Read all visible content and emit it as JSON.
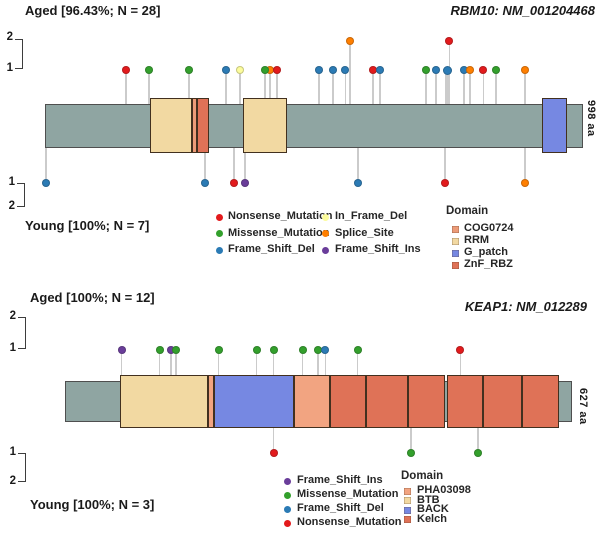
{
  "figure": {
    "background": "#FFFFFF"
  },
  "backbone_color": "#8FA5A2",
  "stem_color": "#CBCBCB",
  "mutation_colors": {
    "Nonsense_Mutation": "#E31A1C",
    "Missense_Mutation": "#33A02C",
    "Frame_Shift_Del": "#2B7BB5",
    "In_Frame_Del": "#FCFC9C",
    "Splice_Site": "#FF7F00",
    "Frame_Shift_Ins": "#6A3D9A"
  },
  "domain_colors": {
    "COG0724": "#EC9B78",
    "RRM": "#F2D9A2",
    "G_patch": "#7688E2",
    "ZnF_RBZ": "#DF7257",
    "PHA03098": "#F2A481",
    "BTB": "#F2D9A2",
    "BACK": "#7688E2",
    "Kelch": "#DF7257"
  },
  "chart_data": [
    {
      "type": "lollipop",
      "gene_title": "RBM10: NM_001204468",
      "aged_label": "Aged [96.43%; N = 28]",
      "young_label": "Young [100%; N = 7]",
      "length_label": "998 aa",
      "length_aa": 998,
      "axis_ticks_top": [
        "2",
        "1"
      ],
      "axis_ticks_bottom": [
        "1",
        "2"
      ],
      "domain_legend_title": "Domain",
      "domains": [
        {
          "name": "RRM",
          "start": 195,
          "end": 273
        },
        {
          "name": "COG0724",
          "start": 273,
          "end": 282
        },
        {
          "name": "ZnF_RBZ",
          "start": 282,
          "end": 304
        },
        {
          "name": "RRM",
          "start": 367,
          "end": 449
        },
        {
          "name": "G_patch",
          "start": 922,
          "end": 968
        }
      ],
      "aged_mutations": [
        {
          "aa": 150,
          "count": 1,
          "type": "Nonsense_Mutation"
        },
        {
          "aa": 193,
          "count": 1,
          "type": "Missense_Mutation"
        },
        {
          "aa": 267,
          "count": 1,
          "type": "Missense_Mutation"
        },
        {
          "aa": 336,
          "count": 1,
          "type": "Frame_Shift_Del"
        },
        {
          "aa": 362,
          "count": 1,
          "type": "In_Frame_Del"
        },
        {
          "aa": 417,
          "count": 1,
          "type": "Splice_Site"
        },
        {
          "aa": 408,
          "count": 1,
          "type": "Missense_Mutation"
        },
        {
          "aa": 430,
          "count": 1,
          "type": "Nonsense_Mutation"
        },
        {
          "aa": 508,
          "count": 1,
          "type": "Frame_Shift_Del"
        },
        {
          "aa": 534,
          "count": 1,
          "type": "Frame_Shift_Del"
        },
        {
          "aa": 557,
          "count": 1,
          "type": "Frame_Shift_Del"
        },
        {
          "aa": 566,
          "count": 2,
          "type": "Splice_Site"
        },
        {
          "aa": 608,
          "count": 1,
          "type": "Nonsense_Mutation"
        },
        {
          "aa": 621,
          "count": 1,
          "type": "Frame_Shift_Del"
        },
        {
          "aa": 707,
          "count": 1,
          "type": "Missense_Mutation"
        },
        {
          "aa": 725,
          "count": 1,
          "type": "Frame_Shift_Del"
        },
        {
          "aa": 746,
          "count": 1,
          "type": "Frame_Shift_Del",
          "emph": true
        },
        {
          "aa": 750,
          "count": 2,
          "type": "Nonsense_Mutation"
        },
        {
          "aa": 777,
          "count": 1,
          "type": "Frame_Shift_Del"
        },
        {
          "aa": 788,
          "count": 1,
          "type": "Splice_Site"
        },
        {
          "aa": 813,
          "count": 1,
          "type": "Nonsense_Mutation"
        },
        {
          "aa": 837,
          "count": 1,
          "type": "Missense_Mutation"
        },
        {
          "aa": 890,
          "count": 1,
          "type": "Splice_Site"
        }
      ],
      "young_mutations": [
        {
          "aa": 2,
          "count": 1,
          "type": "Frame_Shift_Del"
        },
        {
          "aa": 297,
          "count": 1,
          "type": "Frame_Shift_Del"
        },
        {
          "aa": 351,
          "count": 1,
          "type": "Nonsense_Mutation"
        },
        {
          "aa": 371,
          "count": 1,
          "type": "Frame_Shift_Ins"
        },
        {
          "aa": 581,
          "count": 1,
          "type": "Frame_Shift_Del"
        },
        {
          "aa": 742,
          "count": 1,
          "type": "Nonsense_Mutation"
        },
        {
          "aa": 890,
          "count": 1,
          "type": "Splice_Site"
        }
      ],
      "legend_mutation_columns": [
        [
          "Nonsense_Mutation",
          "Missense_Mutation",
          "Frame_Shift_Del"
        ],
        [
          "In_Frame_Del",
          "Splice_Site",
          "Frame_Shift_Ins"
        ]
      ],
      "legend_domains": [
        "COG0724",
        "RRM",
        "G_patch",
        "ZnF_RBZ"
      ]
    },
    {
      "type": "lollipop",
      "gene_title": "KEAP1: NM_012289",
      "aged_label": "Aged [100%; N = 12]",
      "young_label": "Young [100%; N = 3]",
      "length_label": "627 aa",
      "length_aa": 627,
      "axis_ticks_top": [
        "2",
        "1"
      ],
      "axis_ticks_bottom": [
        "1",
        "2"
      ],
      "domain_legend_title": "Domain",
      "domains": [
        {
          "name": "BTB",
          "start": 68,
          "end": 177
        },
        {
          "name": "PHA03098",
          "start": 177,
          "end": 184
        },
        {
          "name": "BACK",
          "start": 184,
          "end": 283
        },
        {
          "name": "PHA03098",
          "start": 283,
          "end": 328
        },
        {
          "name": "Kelch",
          "start": 328,
          "end": 372
        },
        {
          "name": "Kelch",
          "start": 372,
          "end": 424
        },
        {
          "name": "Kelch",
          "start": 424,
          "end": 470
        },
        {
          "name": "Kelch",
          "start": 472,
          "end": 517
        },
        {
          "name": "Kelch",
          "start": 517,
          "end": 565
        },
        {
          "name": "Kelch",
          "start": 565,
          "end": 611
        }
      ],
      "aged_mutations": [
        {
          "aa": 70,
          "count": 1,
          "type": "Frame_Shift_Ins"
        },
        {
          "aa": 117,
          "count": 1,
          "type": "Missense_Mutation"
        },
        {
          "aa": 131,
          "count": 1,
          "type": "Frame_Shift_Ins"
        },
        {
          "aa": 137,
          "count": 1,
          "type": "Missense_Mutation"
        },
        {
          "aa": 190,
          "count": 1,
          "type": "Missense_Mutation"
        },
        {
          "aa": 237,
          "count": 1,
          "type": "Missense_Mutation"
        },
        {
          "aa": 258,
          "count": 1,
          "type": "Missense_Mutation"
        },
        {
          "aa": 294,
          "count": 1,
          "type": "Missense_Mutation"
        },
        {
          "aa": 313,
          "count": 1,
          "type": "Missense_Mutation"
        },
        {
          "aa": 322,
          "count": 1,
          "type": "Frame_Shift_Del"
        },
        {
          "aa": 362,
          "count": 1,
          "type": "Missense_Mutation"
        },
        {
          "aa": 489,
          "count": 1,
          "type": "Nonsense_Mutation"
        }
      ],
      "young_mutations": [
        {
          "aa": 258,
          "count": 1,
          "type": "Nonsense_Mutation"
        },
        {
          "aa": 428,
          "count": 1,
          "type": "Missense_Mutation"
        },
        {
          "aa": 511,
          "count": 1,
          "type": "Missense_Mutation"
        }
      ],
      "legend_mutation_columns": [
        [
          "Frame_Shift_Ins",
          "Missense_Mutation",
          "Frame_Shift_Del",
          "Nonsense_Mutation"
        ]
      ],
      "legend_domains": [
        "PHA03098",
        "BTB",
        "BACK",
        "Kelch"
      ]
    }
  ]
}
